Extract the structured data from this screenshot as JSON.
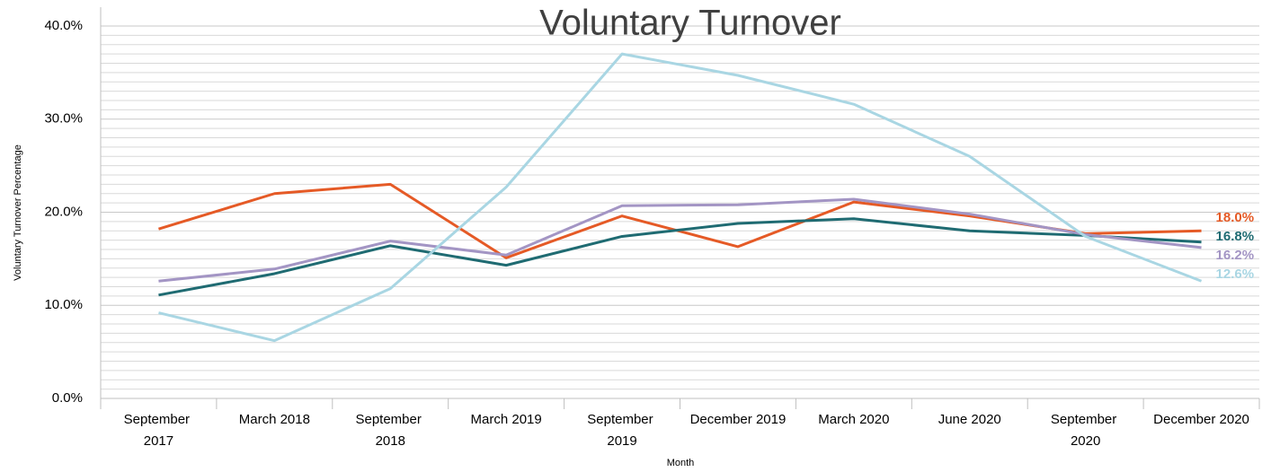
{
  "chart_data": {
    "type": "line",
    "title": "Voluntary Turnover",
    "x_label": "Month",
    "y_label": "Voluntary Turnover Percentage",
    "categories": [
      "September 2017",
      "March 2018",
      "September 2018",
      "March 2019",
      "September 2019",
      "December 2019",
      "March 2020",
      "June 2020",
      "September 2020",
      "December 2020"
    ],
    "series": [
      {
        "color": "#e55a26",
        "values": [
          18.2,
          22.0,
          23.0,
          15.1,
          19.6,
          16.3,
          21.1,
          19.6,
          17.7,
          18.0
        ],
        "value_labels": [
          null,
          null,
          null,
          null,
          null,
          null,
          null,
          null,
          null,
          "18.0%"
        ]
      },
      {
        "color": "#1f6b72",
        "values": [
          11.1,
          13.4,
          16.4,
          14.3,
          17.4,
          18.8,
          19.3,
          18.0,
          17.5,
          16.8
        ],
        "value_labels": [
          null,
          null,
          null,
          null,
          null,
          null,
          null,
          null,
          null,
          "16.8%"
        ]
      },
      {
        "color": "#a395c4",
        "values": [
          12.6,
          13.9,
          16.9,
          15.4,
          20.7,
          20.8,
          21.4,
          19.8,
          17.6,
          16.2
        ],
        "value_labels": [
          null,
          null,
          null,
          null,
          null,
          null,
          null,
          null,
          null,
          "16.2%"
        ]
      },
      {
        "color": "#a9d6e3",
        "values": [
          9.2,
          6.2,
          11.8,
          22.7,
          37.0,
          34.7,
          31.6,
          26.0,
          17.4,
          12.6
        ],
        "value_labels": [
          null,
          null,
          null,
          null,
          null,
          null,
          null,
          null,
          null,
          "12.6%"
        ]
      }
    ],
    "ylim": [
      0,
      40
    ],
    "yticks": [
      {
        "value": 0,
        "label": "0.0%"
      },
      {
        "value": 10,
        "label": "10.0%"
      },
      {
        "value": 20,
        "label": "20.0%"
      },
      {
        "value": 30,
        "label": "30.0%"
      },
      {
        "value": 40,
        "label": "40.0%"
      }
    ],
    "grid": true,
    "minor_grid": true
  }
}
